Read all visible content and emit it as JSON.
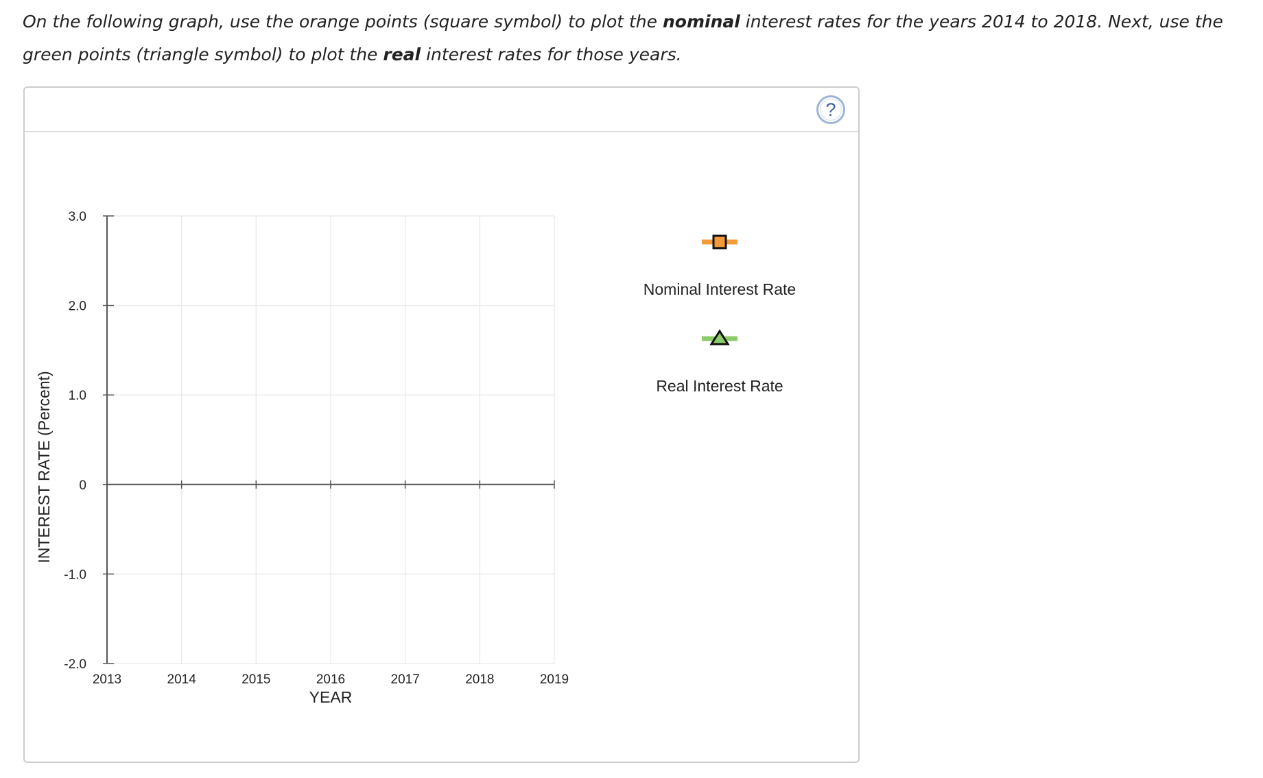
{
  "instructions": {
    "part1": "On the following graph, use the orange points (square symbol) to plot the ",
    "bold1": "nominal",
    "part2": " interest rates for the years 2014 to 2018. Next, use the green points (triangle symbol) to plot the ",
    "bold2": "real",
    "part3": " interest rates for those years."
  },
  "help": {
    "label": "?"
  },
  "chart_data": {
    "type": "scatter",
    "xlabel": "YEAR",
    "ylabel": "INTEREST RATE (Percent)",
    "xlim": [
      2013,
      2019
    ],
    "ylim": [
      -2.0,
      3.0
    ],
    "x_ticks": [
      2013,
      2014,
      2015,
      2016,
      2017,
      2018,
      2019
    ],
    "x_tick_labels": [
      "2013",
      "2014",
      "2015",
      "2016",
      "2017",
      "2018",
      "2019"
    ],
    "y_ticks": [
      3.0,
      2.0,
      1.0,
      0,
      -1.0,
      -2.0
    ],
    "y_tick_labels": [
      "3.0",
      "2.0",
      "1.0",
      "0",
      "-1.0",
      "-2.0"
    ],
    "grid": true,
    "legend_position": "right",
    "series": [
      {
        "name": "Nominal Interest Rate",
        "marker": "square",
        "color": "#f39a3a",
        "points": []
      },
      {
        "name": "Real Interest Rate",
        "marker": "triangle",
        "color": "#8ccc6a",
        "points": []
      }
    ]
  }
}
